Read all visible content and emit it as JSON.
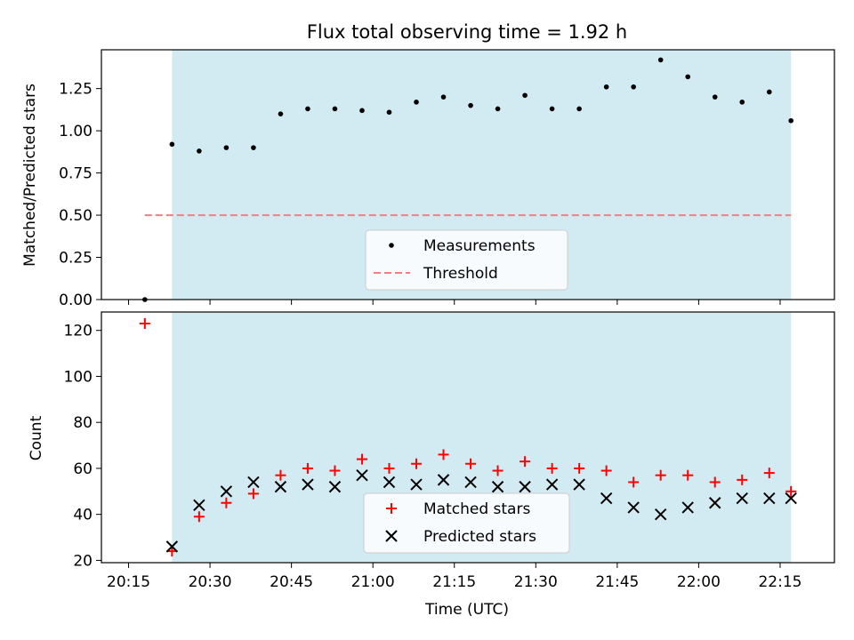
{
  "figure_title": "Flux total observing time = 1.92 h",
  "colors": {
    "measurement": "#000000",
    "threshold": "#f08080",
    "shade": "#add8e6",
    "matched": "#ff0000",
    "predicted": "#000000"
  },
  "chart_data": [
    {
      "type": "scatter",
      "panel": "top",
      "title": "Flux total observing time = 1.92 h",
      "xlabel": "",
      "ylabel": "Matched/Predicted stars",
      "xlim": [
        "20:10",
        "22:25"
      ],
      "ylim": [
        0,
        1.48
      ],
      "yticks": [
        "0.00",
        "0.25",
        "0.50",
        "0.75",
        "1.00",
        "1.25"
      ],
      "shaded_span": [
        "20:23",
        "22:17"
      ],
      "legend_position": "lower center",
      "series": [
        {
          "name": "Measurements",
          "marker": "dot",
          "x": [
            "20:18",
            "20:23",
            "20:28",
            "20:33",
            "20:38",
            "20:43",
            "20:48",
            "20:53",
            "20:58",
            "21:03",
            "21:08",
            "21:13",
            "21:18",
            "21:23",
            "21:28",
            "21:33",
            "21:38",
            "21:43",
            "21:48",
            "21:53",
            "21:58",
            "22:03",
            "22:08",
            "22:13",
            "22:17"
          ],
          "y": [
            0.0,
            0.92,
            0.88,
            0.9,
            0.9,
            1.1,
            1.13,
            1.13,
            1.12,
            1.11,
            1.17,
            1.2,
            1.15,
            1.13,
            1.21,
            1.13,
            1.13,
            1.26,
            1.26,
            1.42,
            1.32,
            1.2,
            1.17,
            1.23,
            1.06
          ]
        },
        {
          "name": "Threshold",
          "style": "dashed",
          "x": [
            "20:18",
            "22:17"
          ],
          "y": [
            0.5,
            0.5
          ]
        }
      ]
    },
    {
      "type": "scatter",
      "panel": "bottom",
      "xlabel": "Time (UTC)",
      "ylabel": "Count",
      "xlim": [
        "20:10",
        "22:25"
      ],
      "ylim": [
        19,
        128
      ],
      "yticks": [
        "20",
        "40",
        "60",
        "80",
        "100",
        "120"
      ],
      "xticks": [
        "20:15",
        "20:30",
        "20:45",
        "21:00",
        "21:15",
        "21:30",
        "21:45",
        "22:00",
        "22:15"
      ],
      "shaded_span": [
        "20:23",
        "22:17"
      ],
      "legend_position": "lower center",
      "series": [
        {
          "name": "Matched stars",
          "marker": "plus",
          "x": [
            "20:18",
            "20:23",
            "20:28",
            "20:33",
            "20:38",
            "20:43",
            "20:48",
            "20:53",
            "20:58",
            "21:03",
            "21:08",
            "21:13",
            "21:18",
            "21:23",
            "21:28",
            "21:33",
            "21:38",
            "21:43",
            "21:48",
            "21:53",
            "21:58",
            "22:03",
            "22:08",
            "22:13",
            "22:17"
          ],
          "y": [
            123,
            24,
            39,
            45,
            49,
            57,
            60,
            59,
            64,
            60,
            62,
            66,
            62,
            59,
            63,
            60,
            60,
            59,
            54,
            57,
            57,
            54,
            55,
            58,
            50
          ]
        },
        {
          "name": "Predicted stars",
          "marker": "x",
          "x": [
            "20:23",
            "20:28",
            "20:33",
            "20:38",
            "20:43",
            "20:48",
            "20:53",
            "20:58",
            "21:03",
            "21:08",
            "21:13",
            "21:18",
            "21:23",
            "21:28",
            "21:33",
            "21:38",
            "21:43",
            "21:48",
            "21:53",
            "21:58",
            "22:03",
            "22:08",
            "22:13",
            "22:17"
          ],
          "y": [
            26,
            44,
            50,
            54,
            52,
            53,
            52,
            57,
            54,
            53,
            55,
            54,
            52,
            52,
            53,
            53,
            47,
            43,
            40,
            43,
            45,
            47,
            47,
            47
          ]
        }
      ]
    }
  ]
}
